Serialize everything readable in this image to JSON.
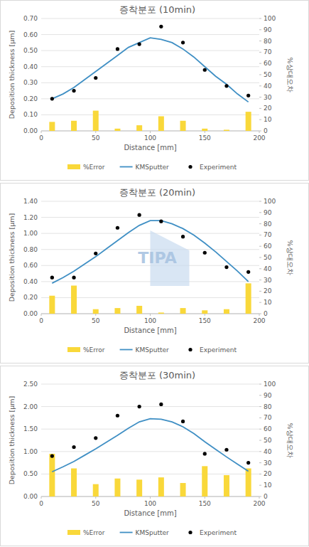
{
  "chart_data": [
    {
      "type": "combo",
      "title": "증착분포 (10min)",
      "x_label": "Distance [mm]",
      "y_label": "Deposition thickness [μm]",
      "y2_label": "%상대오차",
      "xlim": [
        0,
        200
      ],
      "xticks": [
        0,
        50,
        100,
        150,
        200
      ],
      "ylim": [
        0,
        0.7
      ],
      "yticks": [
        {
          "value": 0,
          "label": "0.00"
        },
        {
          "value": 0.1,
          "label": "0.10"
        },
        {
          "value": 0.2,
          "label": "0.20"
        },
        {
          "value": 0.3,
          "label": "0.30"
        },
        {
          "value": 0.4,
          "label": "0.40"
        },
        {
          "value": 0.5,
          "label": "0.50"
        },
        {
          "value": 0.6,
          "label": "0.60"
        },
        {
          "value": 0.7,
          "label": "0.70"
        }
      ],
      "y2lim": [
        0,
        100
      ],
      "y2ticks": [
        0,
        10,
        20,
        30,
        40,
        50,
        60,
        70,
        80,
        90,
        100
      ],
      "grid": true,
      "legend": "bottom",
      "series": [
        {
          "name": "%Error",
          "type": "bar",
          "axis": "y2",
          "color": "#f9d83a",
          "x": [
            10,
            30,
            50,
            70,
            90,
            110,
            130,
            150,
            170,
            190
          ],
          "values": [
            8,
            9,
            18,
            2,
            5,
            13,
            9,
            2,
            1,
            17
          ]
        },
        {
          "name": "KMSputter",
          "type": "line",
          "color": "#3f8fc4",
          "x": [
            10,
            20,
            30,
            40,
            50,
            60,
            70,
            80,
            90,
            100,
            110,
            120,
            130,
            140,
            150,
            160,
            170,
            180,
            190
          ],
          "values": [
            0.2,
            0.23,
            0.27,
            0.32,
            0.37,
            0.42,
            0.47,
            0.52,
            0.55,
            0.58,
            0.57,
            0.55,
            0.51,
            0.46,
            0.4,
            0.34,
            0.29,
            0.23,
            0.18
          ]
        },
        {
          "name": "Experiment",
          "type": "scatter",
          "color": "#000000",
          "marker": "circle",
          "x": [
            10,
            30,
            50,
            70,
            90,
            110,
            130,
            150,
            170,
            190
          ],
          "values": [
            0.2,
            0.25,
            0.33,
            0.51,
            0.54,
            0.65,
            0.55,
            0.38,
            0.28,
            0.22
          ]
        }
      ]
    },
    {
      "type": "combo",
      "title": "증착분포 (20min)",
      "x_label": "Distance [mm]",
      "y_label": "Deposition thickness [μm]",
      "y2_label": "%상대오차",
      "annotation": "TIPA",
      "xlim": [
        0,
        200
      ],
      "xticks": [
        0,
        50,
        100,
        150,
        200
      ],
      "ylim": [
        0,
        1.4
      ],
      "yticks": [
        {
          "value": 0,
          "label": "0.00"
        },
        {
          "value": 0.2,
          "label": "0.20"
        },
        {
          "value": 0.4,
          "label": "0.40"
        },
        {
          "value": 0.6,
          "label": "0.60"
        },
        {
          "value": 0.8,
          "label": "0.80"
        },
        {
          "value": 1.0,
          "label": "1.00"
        },
        {
          "value": 1.2,
          "label": "1.20"
        },
        {
          "value": 1.4,
          "label": "1.40"
        }
      ],
      "y2lim": [
        0,
        100
      ],
      "y2ticks": [
        0,
        10,
        20,
        30,
        40,
        50,
        60,
        70,
        80,
        90,
        100
      ],
      "grid": true,
      "legend": "bottom",
      "series": [
        {
          "name": "%Error",
          "type": "bar",
          "axis": "y2",
          "color": "#f9d83a",
          "x": [
            10,
            30,
            50,
            70,
            90,
            110,
            130,
            150,
            170,
            190
          ],
          "values": [
            16,
            25,
            4,
            5,
            7,
            1,
            5,
            3,
            4,
            27
          ]
        },
        {
          "name": "KMSputter",
          "type": "line",
          "color": "#3f8fc4",
          "x": [
            10,
            20,
            30,
            40,
            50,
            60,
            70,
            80,
            90,
            100,
            110,
            120,
            130,
            140,
            150,
            160,
            170,
            180,
            190
          ],
          "values": [
            0.38,
            0.45,
            0.53,
            0.62,
            0.71,
            0.81,
            0.91,
            1.01,
            1.1,
            1.16,
            1.16,
            1.12,
            1.06,
            0.98,
            0.88,
            0.77,
            0.65,
            0.53,
            0.4
          ]
        },
        {
          "name": "Experiment",
          "type": "scatter",
          "color": "#000000",
          "marker": "circle",
          "x": [
            10,
            30,
            50,
            70,
            90,
            110,
            130,
            150,
            170,
            190
          ],
          "values": [
            0.45,
            0.45,
            0.75,
            1.07,
            1.23,
            1.15,
            0.96,
            0.76,
            0.58,
            0.52
          ]
        }
      ]
    },
    {
      "type": "combo",
      "title": "증착분포 (30min)",
      "x_label": "Distance [mm]",
      "y_label": "Deposition thickness [μm]",
      "y2_label": "%상대오차",
      "xlim": [
        0,
        200
      ],
      "xticks": [
        0,
        50,
        100,
        150,
        200
      ],
      "ylim": [
        0,
        2.5
      ],
      "yticks": [
        {
          "value": 0,
          "label": "0.00"
        },
        {
          "value": 0.5,
          "label": "0.50"
        },
        {
          "value": 1.0,
          "label": "1.00"
        },
        {
          "value": 1.5,
          "label": "1.50"
        },
        {
          "value": 2.0,
          "label": "2.00"
        },
        {
          "value": 2.5,
          "label": "2.50"
        }
      ],
      "y2lim": [
        0,
        100
      ],
      "y2ticks": [
        0,
        10,
        20,
        30,
        40,
        50,
        60,
        70,
        80,
        90,
        100
      ],
      "grid": true,
      "legend": "bottom",
      "series": [
        {
          "name": "%Error",
          "type": "bar",
          "axis": "y2",
          "color": "#f9d83a",
          "x": [
            10,
            30,
            50,
            70,
            90,
            110,
            130,
            150,
            170,
            190
          ],
          "values": [
            38,
            25,
            11,
            16,
            15,
            17,
            12,
            27,
            19,
            25
          ]
        },
        {
          "name": "KMSputter",
          "type": "line",
          "color": "#3f8fc4",
          "x": [
            10,
            20,
            30,
            40,
            50,
            60,
            70,
            80,
            90,
            100,
            110,
            120,
            130,
            140,
            150,
            160,
            170,
            180,
            190
          ],
          "values": [
            0.55,
            0.66,
            0.78,
            0.92,
            1.06,
            1.21,
            1.36,
            1.52,
            1.66,
            1.73,
            1.72,
            1.66,
            1.55,
            1.4,
            1.22,
            1.05,
            0.88,
            0.72,
            0.56
          ]
        },
        {
          "name": "Experiment",
          "type": "scatter",
          "color": "#000000",
          "marker": "circle",
          "x": [
            10,
            30,
            50,
            70,
            90,
            110,
            130,
            150,
            170,
            190
          ],
          "values": [
            0.9,
            1.1,
            1.3,
            1.8,
            2.0,
            2.05,
            1.67,
            0.95,
            1.04,
            0.75
          ]
        }
      ]
    }
  ]
}
